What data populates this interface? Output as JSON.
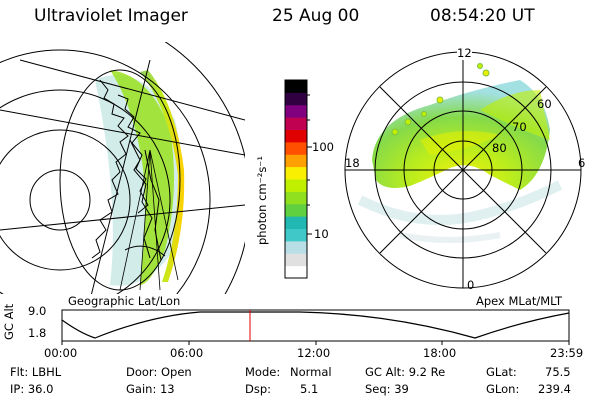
{
  "header": {
    "instrument": "Ultraviolet Imager",
    "date": "25 Aug 00",
    "time": "08:54:20 UT"
  },
  "colorbar": {
    "unit_label": "photon cm⁻²s⁻¹",
    "scale": "log",
    "ticks": [
      "100",
      "10"
    ],
    "colors": [
      "#ffffff",
      "#e0e0e0",
      "#b8dfe6",
      "#40c8c8",
      "#20b8b0",
      "#60d040",
      "#90e020",
      "#c0f000",
      "#f8f000",
      "#ffa000",
      "#ff5000",
      "#e00000",
      "#c00050",
      "#800080",
      "#300040",
      "#000000"
    ]
  },
  "left_map": {
    "label": "Geographic Lat/Lon",
    "emission_color": "#9be020"
  },
  "right_map": {
    "label": "Apex MLat/MLT",
    "mlt_labels": {
      "top": "12",
      "bottom": "0",
      "left": "18",
      "right": "6"
    },
    "lat_labels": [
      "60",
      "70",
      "80"
    ]
  },
  "altitude_plot": {
    "ylabel": "GC Alt",
    "yticks": [
      "9.0",
      "1.8"
    ],
    "ylim": [
      1.8,
      9.0
    ],
    "xticks": [
      "00:00",
      "06:00",
      "12:00",
      "18:00",
      "23:59"
    ],
    "marker_time_hours": 8.9,
    "marker_color": "#e00000"
  },
  "info": {
    "row1": {
      "flt": "Flt: LBHL",
      "door": "Door: Open",
      "mode_label": "Mode:",
      "mode_value": "Normal",
      "gc_alt": "GC Alt: 9.2 Re",
      "glat_label": "GLat:",
      "glat_value": "75.5"
    },
    "row2": {
      "ip": "IP: 36.0",
      "gain": "Gain: 13",
      "dsp_label": "Dsp:",
      "dsp_value": "5.1",
      "seq": "Seq: 39",
      "glon_label": "GLon:",
      "glon_value": "239.4"
    }
  }
}
